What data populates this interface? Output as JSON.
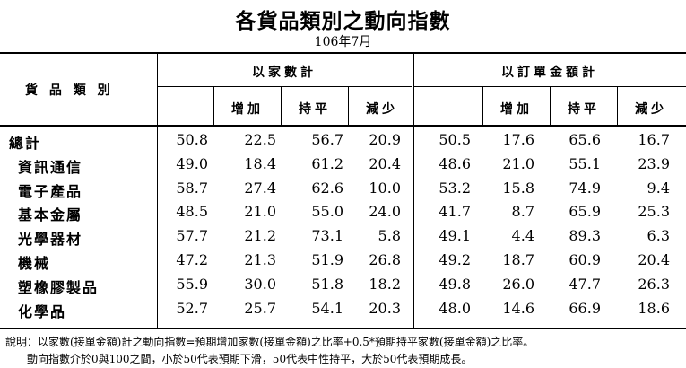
{
  "title": "各貨品類別之動向指數",
  "subtitle": "106年7月",
  "header": {
    "category": "貨 品 類 別",
    "by_firms": "以家數計",
    "by_orders": "以訂單金額計",
    "sub_labels": [
      "增加",
      "持平",
      "減少"
    ]
  },
  "rows": [
    {
      "category": "總計",
      "firms": [
        "50.8",
        "22.5",
        "56.7",
        "20.9"
      ],
      "orders": [
        "50.5",
        "17.6",
        "65.6",
        "16.7"
      ]
    },
    {
      "category": "資訊通信",
      "firms": [
        "49.0",
        "18.4",
        "61.2",
        "20.4"
      ],
      "orders": [
        "48.6",
        "21.0",
        "55.1",
        "23.9"
      ]
    },
    {
      "category": "電子產品",
      "firms": [
        "58.7",
        "27.4",
        "62.6",
        "10.0"
      ],
      "orders": [
        "53.2",
        "15.8",
        "74.9",
        "9.4"
      ]
    },
    {
      "category": "基本金屬",
      "firms": [
        "48.5",
        "21.0",
        "55.0",
        "24.0"
      ],
      "orders": [
        "41.7",
        "8.7",
        "65.9",
        "25.3"
      ]
    },
    {
      "category": "光學器材",
      "firms": [
        "57.7",
        "21.2",
        "73.1",
        "5.8"
      ],
      "orders": [
        "49.1",
        "4.4",
        "89.3",
        "6.3"
      ]
    },
    {
      "category": "機械",
      "firms": [
        "47.2",
        "21.3",
        "51.9",
        "26.8"
      ],
      "orders": [
        "49.2",
        "18.7",
        "60.9",
        "20.4"
      ]
    },
    {
      "category": "塑橡膠製品",
      "firms": [
        "55.9",
        "30.0",
        "51.8",
        "18.2"
      ],
      "orders": [
        "49.8",
        "26.0",
        "47.7",
        "26.3"
      ]
    },
    {
      "category": "化學品",
      "firms": [
        "52.7",
        "25.7",
        "54.1",
        "20.3"
      ],
      "orders": [
        "48.0",
        "14.6",
        "66.9",
        "18.6"
      ]
    }
  ],
  "notes": [
    "說明：以家數(接單金額)計之動向指數=預期增加家數(接單金額)之比率+0.5*預期持平家數(接單金額)之比率。",
    "　　動向指數介於0與100之間，小於50代表預期下滑，50代表中性持平，大於50代表預期成長。"
  ]
}
